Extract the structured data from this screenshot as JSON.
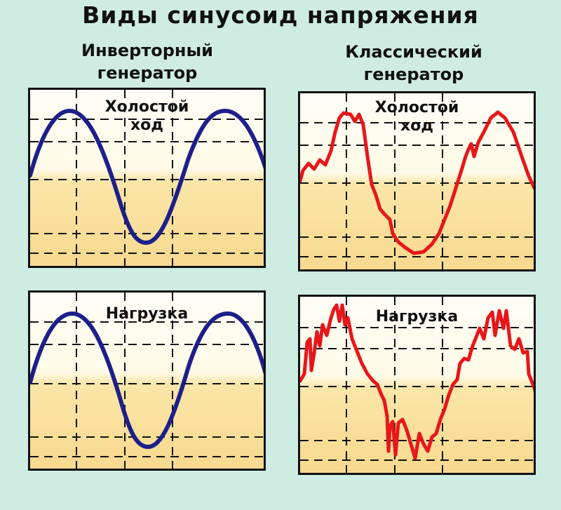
{
  "title": "Виды синусоид напряжения",
  "columns": {
    "left": "Инверторный\nгенератор",
    "right": "Классический\nгенератор"
  },
  "panels": {
    "inverter_idle": "Холостой\nход",
    "inverter_load": "Нагрузка",
    "classic_idle": "Холостой\nход",
    "classic_load": "Нагрузка"
  },
  "colors": {
    "inverter_wave": "#1d1f8a",
    "classic_wave": "#e8161a",
    "background": "#cfece3"
  }
}
